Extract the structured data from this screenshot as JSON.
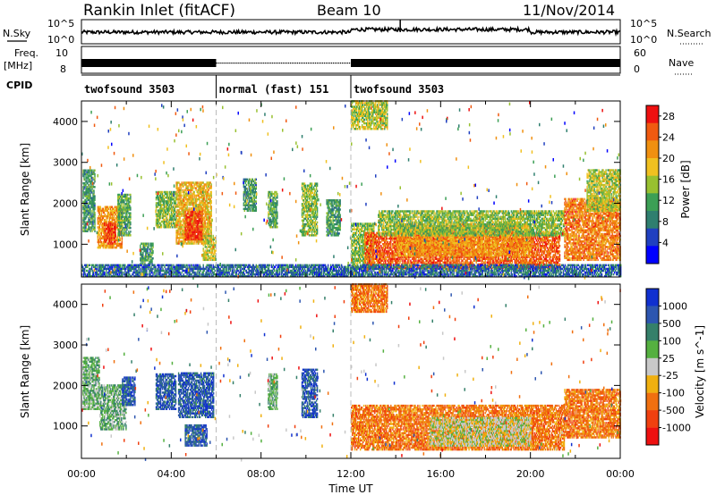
{
  "header": {
    "station": "Rankin Inlet (fitACF)",
    "beam": "Beam 10",
    "date": "11/Nov/2014"
  },
  "nsky_panel": {
    "left_label": "N.Sky",
    "right_label": "N.Search",
    "ytick_top": "10^5",
    "ytick_bottom": "10^0"
  },
  "freq_panel": {
    "left_label_1": "Freq.",
    "left_label_2": "[MHz]",
    "right_label": "Nave",
    "ytick_top": "10",
    "ytick_bottom": "8",
    "rtick_top": "60",
    "rtick_bottom": "0"
  },
  "cpid_panel": {
    "label": "CPID",
    "segments": [
      {
        "start_hr": 0,
        "end_hr": 6,
        "text": "twofsound 3503"
      },
      {
        "start_hr": 6,
        "end_hr": 12,
        "text": "normal (fast) 151"
      },
      {
        "start_hr": 12,
        "end_hr": 24,
        "text": "twofsound 3503"
      }
    ]
  },
  "colors": {
    "power_scale": [
      "#0000ff",
      "#2040c0",
      "#2f7f6f",
      "#3c9f55",
      "#98c030",
      "#f0c020",
      "#f09010",
      "#f05a10",
      "#ee1010"
    ],
    "velocity_scale": [
      "#1030d0",
      "#2d56b0",
      "#35806a",
      "#55b040",
      "#c8c8c8",
      "#f0b010",
      "#f07010",
      "#f04010",
      "#ee1010"
    ]
  },
  "chart_data": [
    {
      "type": "heatmap",
      "name": "power",
      "ylabel": "Slant Range [km]",
      "yticks": [
        1000,
        2000,
        3000,
        4000
      ],
      "ylim": [
        200,
        4500
      ],
      "xlim": [
        0,
        24
      ],
      "colorbar_label": "Power [dB]",
      "colorbar_ticks": [
        4,
        8,
        12,
        16,
        20,
        24,
        28
      ],
      "colorbar_range": [
        0,
        30
      ],
      "regions": [
        {
          "t0": 0.05,
          "t1": 0.6,
          "r0": 1300,
          "r1": 2800,
          "v": 10
        },
        {
          "t0": 0.7,
          "t1": 1.8,
          "r0": 900,
          "r1": 1900,
          "v": 22
        },
        {
          "t0": 1.0,
          "t1": 1.5,
          "r0": 1000,
          "r1": 1500,
          "v": 28
        },
        {
          "t0": 1.6,
          "t1": 2.2,
          "r0": 1200,
          "r1": 2200,
          "v": 12
        },
        {
          "t0": 2.6,
          "t1": 3.2,
          "r0": 500,
          "r1": 1000,
          "v": 10
        },
        {
          "t0": 3.3,
          "t1": 4.2,
          "r0": 1400,
          "r1": 2300,
          "v": 14
        },
        {
          "t0": 4.2,
          "t1": 5.8,
          "r0": 1000,
          "r1": 2500,
          "v": 20
        },
        {
          "t0": 4.6,
          "t1": 5.4,
          "r0": 1100,
          "r1": 1800,
          "v": 28
        },
        {
          "t0": 5.4,
          "t1": 6.0,
          "r0": 600,
          "r1": 1200,
          "v": 16
        },
        {
          "t0": 7.2,
          "t1": 7.8,
          "r0": 1800,
          "r1": 2600,
          "v": 10
        },
        {
          "t0": 8.3,
          "t1": 8.7,
          "r0": 1400,
          "r1": 2300,
          "v": 12
        },
        {
          "t0": 9.8,
          "t1": 10.5,
          "r0": 1200,
          "r1": 2500,
          "v": 14
        },
        {
          "t0": 10.9,
          "t1": 11.5,
          "r0": 1200,
          "r1": 2100,
          "v": 10
        },
        {
          "t0": 12.0,
          "t1": 13.0,
          "r0": 400,
          "r1": 1500,
          "v": 14
        },
        {
          "t0": 12.6,
          "t1": 21.3,
          "r0": 400,
          "r1": 1300,
          "v": 26
        },
        {
          "t0": 14.0,
          "t1": 20.0,
          "r0": 700,
          "r1": 1500,
          "v": 22
        },
        {
          "t0": 13.2,
          "t1": 21.5,
          "r0": 1200,
          "r1": 1800,
          "v": 14
        },
        {
          "t0": 21.5,
          "t1": 24.0,
          "r0": 600,
          "r1": 2100,
          "v": 24
        },
        {
          "t0": 22.5,
          "t1": 24.0,
          "r0": 1800,
          "r1": 2800,
          "v": 16
        },
        {
          "t0": 12.0,
          "t1": 13.6,
          "r0": 3800,
          "r1": 4500,
          "v": 16
        },
        {
          "t0": 0.0,
          "t1": 24.0,
          "r0": 200,
          "r1": 500,
          "v": 6
        }
      ],
      "scatter_density": 0.45
    },
    {
      "type": "heatmap",
      "name": "velocity",
      "ylabel": "Slant Range [km]",
      "xlabel": "Time UT",
      "xticks": [
        "00:00",
        "04:00",
        "08:00",
        "12:00",
        "16:00",
        "20:00",
        "00:00"
      ],
      "yticks": [
        1000,
        2000,
        3000,
        4000
      ],
      "ylim": [
        200,
        4500
      ],
      "xlim": [
        0,
        24
      ],
      "colorbar_label": "Velocity [m s^-1]",
      "colorbar_ticks": [
        "1000",
        "500",
        "100",
        "25",
        "-25",
        "-100",
        "-500",
        "-1000"
      ],
      "regions": [
        {
          "t0": 0.05,
          "t1": 0.8,
          "r0": 1400,
          "r1": 2700,
          "v": 1
        },
        {
          "t0": 0.8,
          "t1": 2.0,
          "r0": 900,
          "r1": 2000,
          "v": 1
        },
        {
          "t0": 1.8,
          "t1": 2.4,
          "r0": 1500,
          "r1": 2200,
          "v": 3
        },
        {
          "t0": 3.3,
          "t1": 4.2,
          "r0": 1400,
          "r1": 2300,
          "v": 3
        },
        {
          "t0": 4.3,
          "t1": 5.9,
          "r0": 1200,
          "r1": 2300,
          "v": 3
        },
        {
          "t0": 4.6,
          "t1": 5.6,
          "r0": 500,
          "r1": 1000,
          "v": 3
        },
        {
          "t0": 8.3,
          "t1": 8.7,
          "r0": 1400,
          "r1": 2300,
          "v": 1
        },
        {
          "t0": 9.8,
          "t1": 10.5,
          "r0": 1200,
          "r1": 2400,
          "v": 3
        },
        {
          "t0": 12.0,
          "t1": 21.5,
          "r0": 400,
          "r1": 1500,
          "v": -2
        },
        {
          "t0": 15.5,
          "t1": 20.0,
          "r0": 500,
          "r1": 1200,
          "v": 0
        },
        {
          "t0": 21.5,
          "t1": 24.0,
          "r0": 700,
          "r1": 1900,
          "v": -2
        },
        {
          "t0": 12.0,
          "t1": 13.6,
          "r0": 3800,
          "r1": 4500,
          "v": -2
        }
      ],
      "scatter_density": 0.4
    }
  ]
}
